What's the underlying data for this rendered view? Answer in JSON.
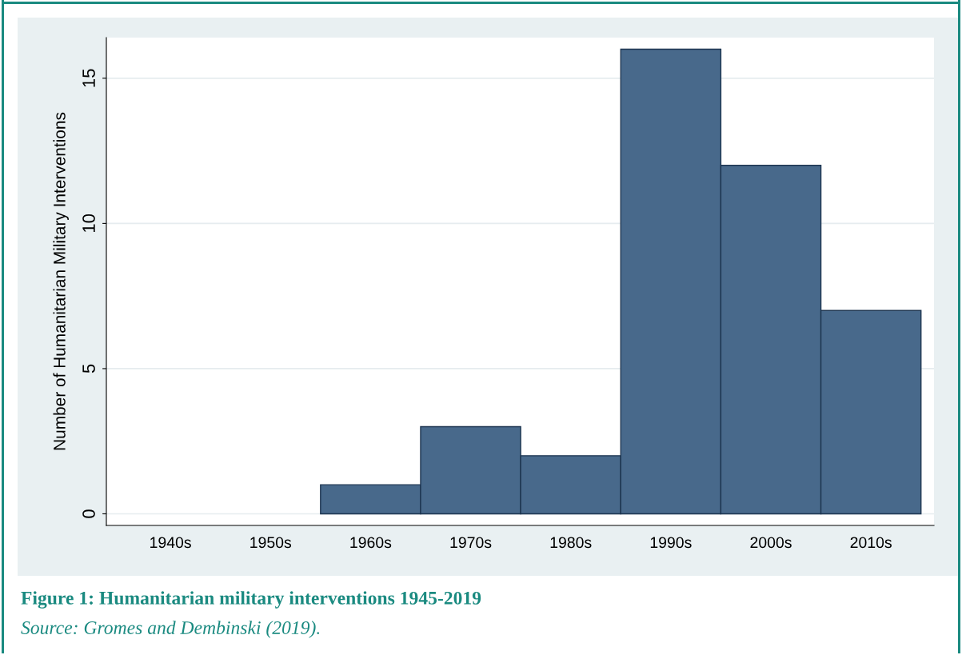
{
  "chart_data": {
    "type": "bar",
    "ylabel": "Number of Humanitarian Military Interventions",
    "categories": [
      "1940s",
      "1950s",
      "1960s",
      "1970s",
      "1980s",
      "1990s",
      "2000s",
      "2010s"
    ],
    "values": [
      0,
      0,
      1,
      3,
      2,
      16,
      12,
      7
    ],
    "color": "#48698b",
    "ylim": [
      -0.4,
      16.4
    ],
    "yticks": [
      0,
      5,
      10,
      15
    ],
    "grid": "y",
    "annotations": [
      "Figure 1: Humanitarian military interventions 1945-2019",
      "Source: Gromes and Dembinski (2019)."
    ]
  }
}
